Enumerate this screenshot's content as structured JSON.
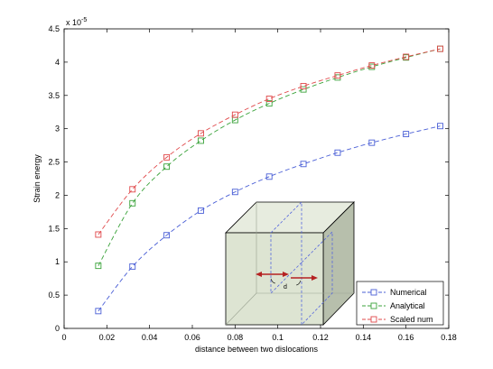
{
  "chart_data": {
    "type": "line",
    "xlabel": "distance between two dislocations",
    "ylabel": "Strain energy",
    "exponent_label": "x 10",
    "exponent_power": "-5",
    "xlim": [
      0,
      0.18
    ],
    "ylim": [
      0,
      4.5
    ],
    "x_ticks": [
      0,
      0.02,
      0.04,
      0.06,
      0.08,
      0.1,
      0.12,
      0.14,
      0.16,
      0.18
    ],
    "x_tick_labels": [
      "0",
      "0.02",
      "0.04",
      "0.06",
      "0.08",
      "0.1",
      "0.12",
      "0.14",
      "0.16",
      "0.18"
    ],
    "y_ticks": [
      0,
      0.5,
      1,
      1.5,
      2,
      2.5,
      3,
      3.5,
      4,
      4.5
    ],
    "y_tick_labels": [
      "0",
      "0.5",
      "1",
      "1.5",
      "2",
      "2.5",
      "3",
      "3.5",
      "4",
      "4.5"
    ],
    "grid": false,
    "legend_position": "bottom-right",
    "x": [
      0.016,
      0.032,
      0.048,
      0.064,
      0.08,
      0.096,
      0.112,
      0.128,
      0.144,
      0.16,
      0.176
    ],
    "series": [
      {
        "name": "Numerical",
        "color": "#4a5fd6",
        "values": [
          0.26,
          0.93,
          1.4,
          1.77,
          2.05,
          2.28,
          2.47,
          2.64,
          2.79,
          2.92,
          3.04
        ]
      },
      {
        "name": "Analytical",
        "color": "#3ba33b",
        "values": [
          0.94,
          1.88,
          2.43,
          2.82,
          3.13,
          3.38,
          3.59,
          3.77,
          3.93,
          4.07,
          4.2
        ]
      },
      {
        "name": "Scaled num",
        "color": "#e0484a",
        "values": [
          1.41,
          2.09,
          2.57,
          2.93,
          3.21,
          3.45,
          3.64,
          3.8,
          3.95,
          4.08,
          4.2
        ]
      }
    ],
    "inset_label": "d"
  }
}
